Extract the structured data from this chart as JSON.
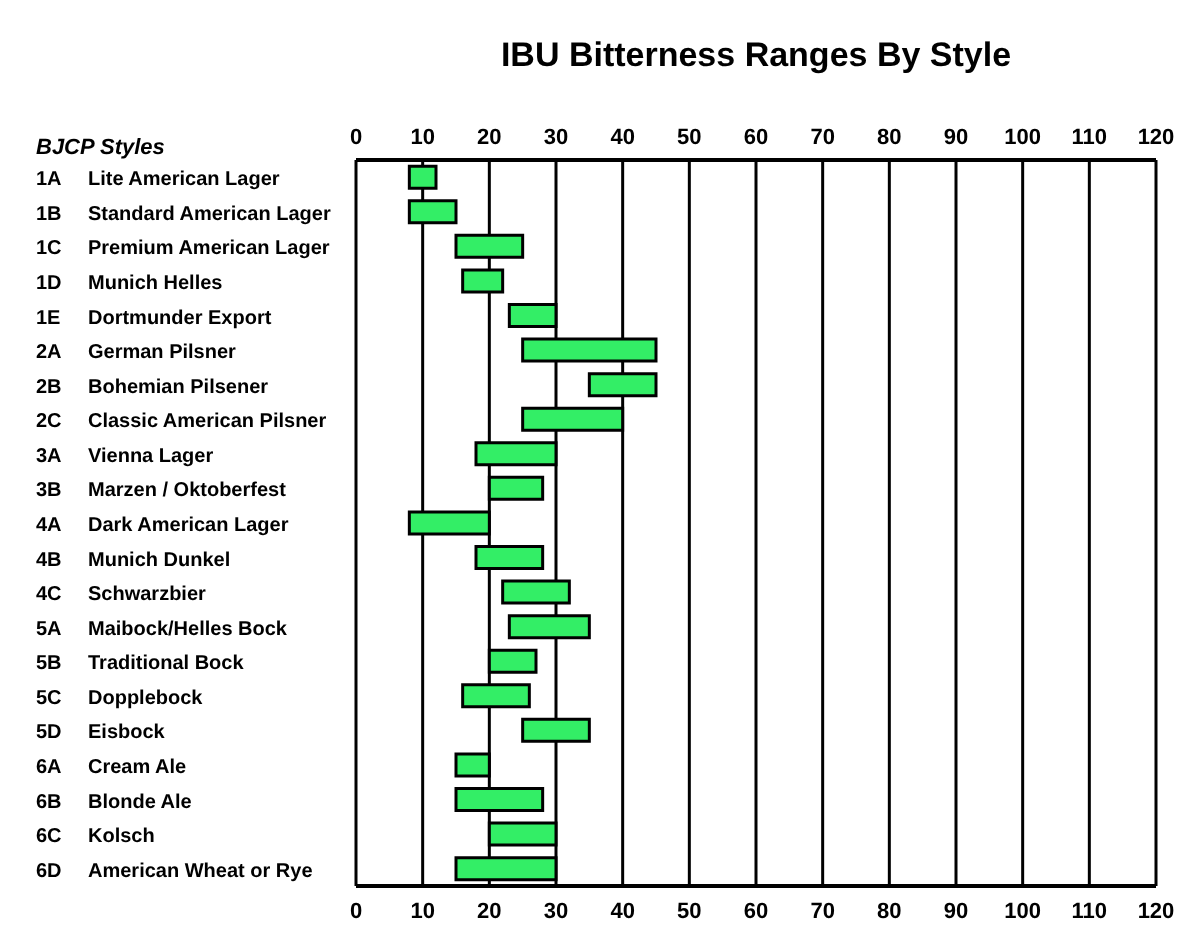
{
  "chart_data": {
    "type": "bar",
    "orientation": "horizontal",
    "title": "IBU Bitterness Ranges By Style",
    "annotations": [
      "BJCP Styles"
    ],
    "categories": [
      "1A Lite American Lager",
      "1B Standard American Lager",
      "1C Premium American Lager",
      "1D Munich Helles",
      "1E Dortmunder Export",
      "2A German Pilsner",
      "2B Bohemian Pilsener",
      "2C Classic American Pilsner",
      "3A Vienna Lager",
      "3B Marzen / Oktoberfest",
      "4A Dark American Lager",
      "4B Munich Dunkel",
      "4C Schwarzbier",
      "5A Maibock/Helles Bock",
      "5B Traditional Bock",
      "5C Dopplebock",
      "5D Eisbock",
      "6A Cream Ale",
      "6B Blonde Ale",
      "6C Kolsch",
      "6D American Wheat or Rye"
    ],
    "base": [
      8,
      8,
      15,
      16,
      23,
      25,
      35,
      25,
      18,
      20,
      8,
      18,
      22,
      23,
      20,
      16,
      25,
      15,
      15,
      20,
      15
    ],
    "values": [
      4,
      7,
      10,
      6,
      7,
      20,
      10,
      15,
      12,
      8,
      12,
      10,
      10,
      12,
      7,
      10,
      10,
      5,
      13,
      10,
      15
    ],
    "color": "#33ee66",
    "xlim": [
      0,
      120
    ],
    "xticks": [
      0,
      10,
      20,
      30,
      40,
      50,
      60,
      70,
      80,
      90,
      100,
      110,
      120
    ],
    "x2lim": [
      0,
      120
    ],
    "x2ticks": [
      0,
      10,
      20,
      30,
      40,
      50,
      60,
      70,
      80,
      90,
      100,
      110,
      120
    ],
    "grid": "x"
  }
}
